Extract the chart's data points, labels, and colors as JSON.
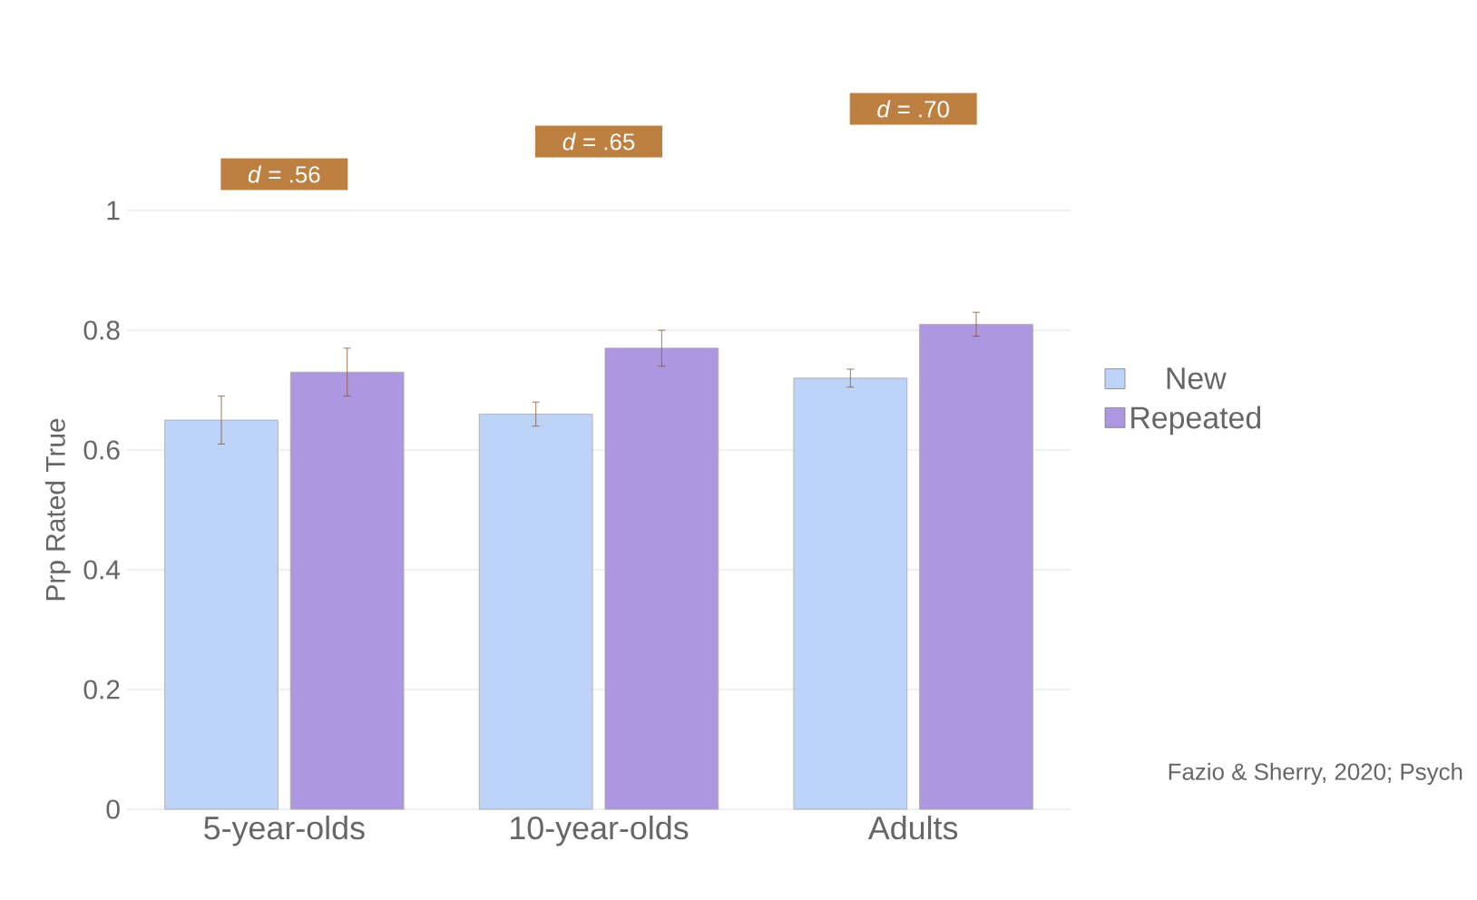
{
  "chart_data": {
    "type": "bar",
    "ylabel": "Prp Rated True",
    "categories": [
      "5-year-olds",
      "10-year-olds",
      "Adults"
    ],
    "series": [
      {
        "name": "New",
        "color": "#bdd3f7",
        "values": [
          0.65,
          0.66,
          0.72
        ],
        "errors": [
          0.04,
          0.02,
          0.015
        ]
      },
      {
        "name": "Repeated",
        "color": "#ad97e0",
        "values": [
          0.73,
          0.77,
          0.81
        ],
        "errors": [
          0.04,
          0.03,
          0.02
        ]
      }
    ],
    "ylim": [
      0,
      1
    ],
    "yticks": [
      0,
      0.2,
      0.4,
      0.6,
      0.8,
      1
    ],
    "grid": "y",
    "legend": "right",
    "annotations": [
      "*d* = .56",
      "*d* = .65",
      "*d* = .70",
      "Fazio & Sherry, 2020; Psych"
    ]
  }
}
